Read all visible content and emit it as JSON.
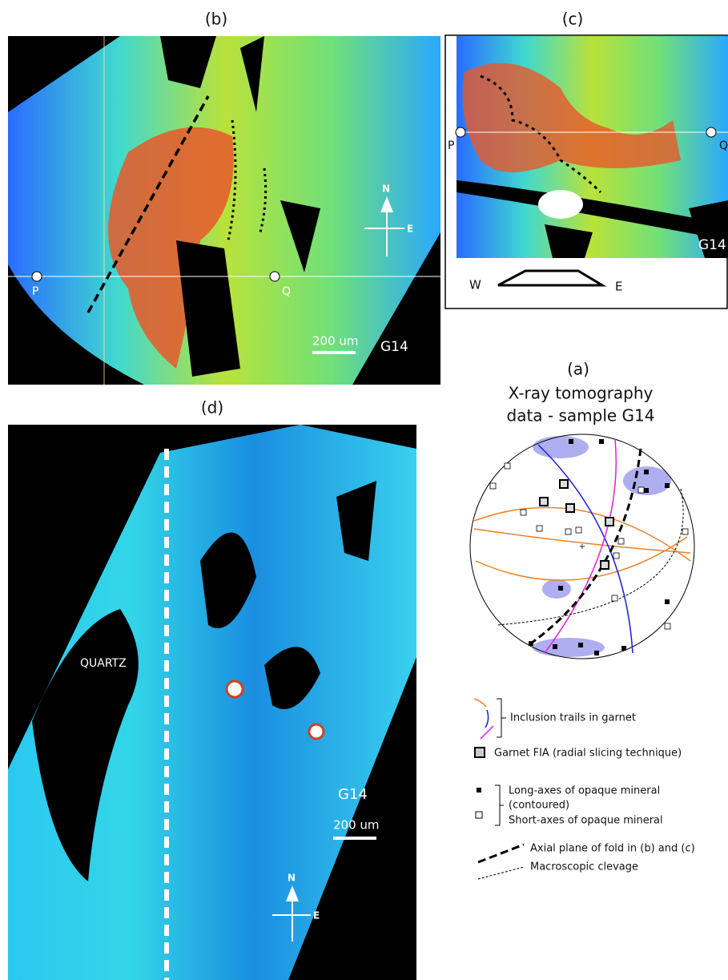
{
  "panel_b": {
    "label": "(b)",
    "point_left": "P",
    "point_right": "Q",
    "north": "N",
    "east": "E",
    "scale": "200 um",
    "sample": "G14"
  },
  "panel_c": {
    "label": "(c)",
    "point_left": "P",
    "point_right": "Q",
    "sample": "G14",
    "west": "W",
    "east": "E"
  },
  "panel_a": {
    "label": "(a)",
    "title_line1": "X-ray tomography",
    "title_line2": "data - sample G14"
  },
  "legend": {
    "inclusion_trails": "Inclusion trails in garnet",
    "garnet_fia": "Garnet FIA (radial slicing technique)",
    "long_axes": "Long-axes of opaque mineral",
    "contoured": "(contoured)",
    "short_axes": "Short-axes of opaque mineral",
    "axial_plane": "Axial plane of fold in (b) and (c)",
    "cleavage": "Macroscopic clevage"
  },
  "panel_d": {
    "label": "(d)",
    "mineral": "QUARTZ",
    "sample": "G14",
    "scale": "200 um",
    "north": "N",
    "east": "E"
  }
}
